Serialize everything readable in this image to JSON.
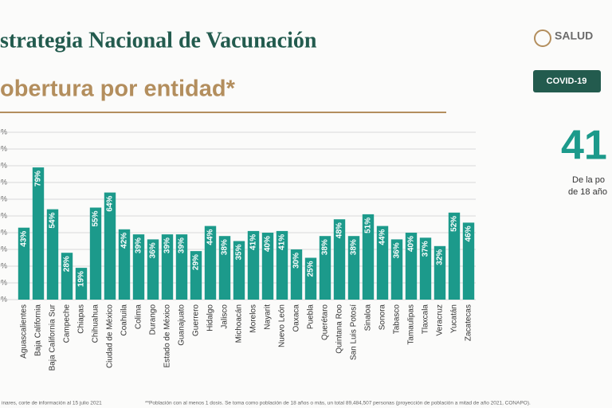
{
  "chart_data": {
    "type": "bar",
    "title": "strategia Nacional de Vacunación",
    "subtitle": "obertura por entidad*",
    "categories": [
      "Aguascalientes",
      "Baja California",
      "Baja California Sur",
      "Campeche",
      "Chiapas",
      "Chihuahua",
      "Ciudad de México",
      "Coahuila",
      "Colima",
      "Durango",
      "Estado de México",
      "Guanajuato",
      "Guerrero",
      "Hidalgo",
      "Jalisco",
      "Michoacán",
      "Morelos",
      "Nayarit",
      "Nuevo León",
      "Oaxaca",
      "Puebla",
      "Querétaro",
      "Quintana Roo",
      "San Luis Potosí",
      "Sinaloa",
      "Sonora",
      "Tabasco",
      "Tamaulipas",
      "Tlaxcala",
      "Veracruz",
      "Yucatán",
      "Zacatecas"
    ],
    "values": [
      43,
      79,
      54,
      28,
      19,
      55,
      64,
      42,
      39,
      36,
      39,
      39,
      29,
      44,
      38,
      35,
      41,
      40,
      41,
      30,
      25,
      38,
      48,
      38,
      51,
      44,
      36,
      40,
      37,
      32,
      52,
      46
    ],
    "value_labels": [
      "43%",
      "79%",
      "54%",
      "28%",
      "19%",
      "55%",
      "64%",
      "42%",
      "39%",
      "36%",
      "39%",
      "39%",
      "29%",
      "44%",
      "38%",
      "35%",
      "41%",
      "40%",
      "41%",
      "30%",
      "25%",
      "38%",
      "48%",
      "38%",
      "51%",
      "44%",
      "36%",
      "40%",
      "37%",
      "32%",
      "52%",
      "46%"
    ],
    "color": "#1c9a8b",
    "ylim": [
      0,
      100
    ],
    "yticks": [
      {
        "value": 0,
        "label": "%"
      },
      {
        "value": 10,
        "label": "%"
      },
      {
        "value": 20,
        "label": "%"
      },
      {
        "value": 30,
        "label": "%"
      },
      {
        "value": 40,
        "label": "%"
      },
      {
        "value": 50,
        "label": "%"
      },
      {
        "value": 60,
        "label": "%"
      },
      {
        "value": 70,
        "label": "%"
      },
      {
        "value": 80,
        "label": "%"
      },
      {
        "value": 90,
        "label": "%"
      },
      {
        "value": 100,
        "label": "%"
      }
    ],
    "grid": true
  },
  "header": {
    "logo": "SALUD",
    "badge": "COVID-19"
  },
  "side": {
    "figure": "41",
    "lines": [
      "De la po",
      "de 18 año"
    ]
  },
  "footer": {
    "left": "inares, corte de información al 15 julio 2021",
    "right": "**Población con al menos 1 dosis. Se toma como población de 18 años o más, un total 89,484,507 personas (proyección de población a mitad de año 2021, CONAPO)."
  }
}
